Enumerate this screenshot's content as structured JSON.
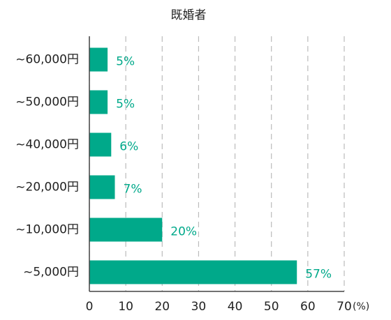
{
  "chart_data": {
    "type": "bar",
    "orientation": "horizontal",
    "title": "既婚者",
    "categories": [
      "~60,000円",
      "~50,000円",
      "~40,000円",
      "~20,000円",
      "~10,000円",
      "~5,000円"
    ],
    "values": [
      5,
      5,
      6,
      7,
      20,
      57
    ],
    "value_labels": [
      "5%",
      "5%",
      "6%",
      "7%",
      "20%",
      "57%"
    ],
    "color": "#00a98a",
    "x_unit": "(%)",
    "xlim": [
      0,
      70
    ],
    "xticks": [
      0,
      10,
      20,
      30,
      40,
      50,
      60,
      70
    ],
    "grid": true
  }
}
